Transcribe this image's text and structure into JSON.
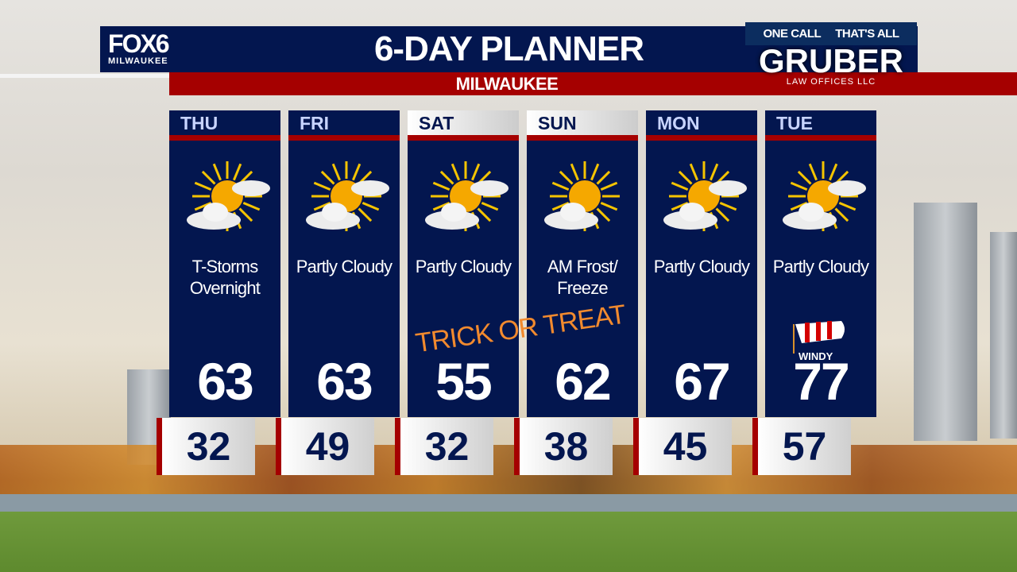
{
  "header": {
    "brand_line1": "FOX6",
    "brand_line2": "MILWAUKEE",
    "title": "6-DAY PLANNER",
    "location": "MILWAUKEE"
  },
  "sponsor": {
    "tagline_left": "ONE CALL",
    "tagline_right": "THAT'S ALL",
    "name": "GRUBER",
    "subtitle": "LAW OFFICES LLC"
  },
  "annotations": {
    "trick_or_treat": "TRICK OR TREAT",
    "windy": "WINDY"
  },
  "colors": {
    "navy": "#03164f",
    "red": "#a50000",
    "orange": "#f28a2e"
  },
  "days": [
    {
      "day": "THU",
      "condition_line1": "T-Storms",
      "condition_line2": "Overnight",
      "icon": "partly-cloudy-icon",
      "high": "63",
      "low": "32"
    },
    {
      "day": "FRI",
      "condition_line1": "Partly Cloudy",
      "condition_line2": "",
      "icon": "partly-cloudy-icon",
      "high": "63",
      "low": "49"
    },
    {
      "day": "SAT",
      "condition_line1": "Partly Cloudy",
      "condition_line2": "",
      "icon": "partly-cloudy-icon",
      "high": "55",
      "low": "32"
    },
    {
      "day": "SUN",
      "condition_line1": "AM Frost/",
      "condition_line2": "Freeze",
      "icon": "mostly-sunny-icon",
      "high": "62",
      "low": "38"
    },
    {
      "day": "MON",
      "condition_line1": "Partly Cloudy",
      "condition_line2": "",
      "icon": "partly-cloudy-icon",
      "high": "67",
      "low": "45"
    },
    {
      "day": "TUE",
      "condition_line1": "Partly Cloudy",
      "condition_line2": "",
      "icon": "partly-cloudy-icon",
      "high": "77",
      "low": "57"
    }
  ]
}
